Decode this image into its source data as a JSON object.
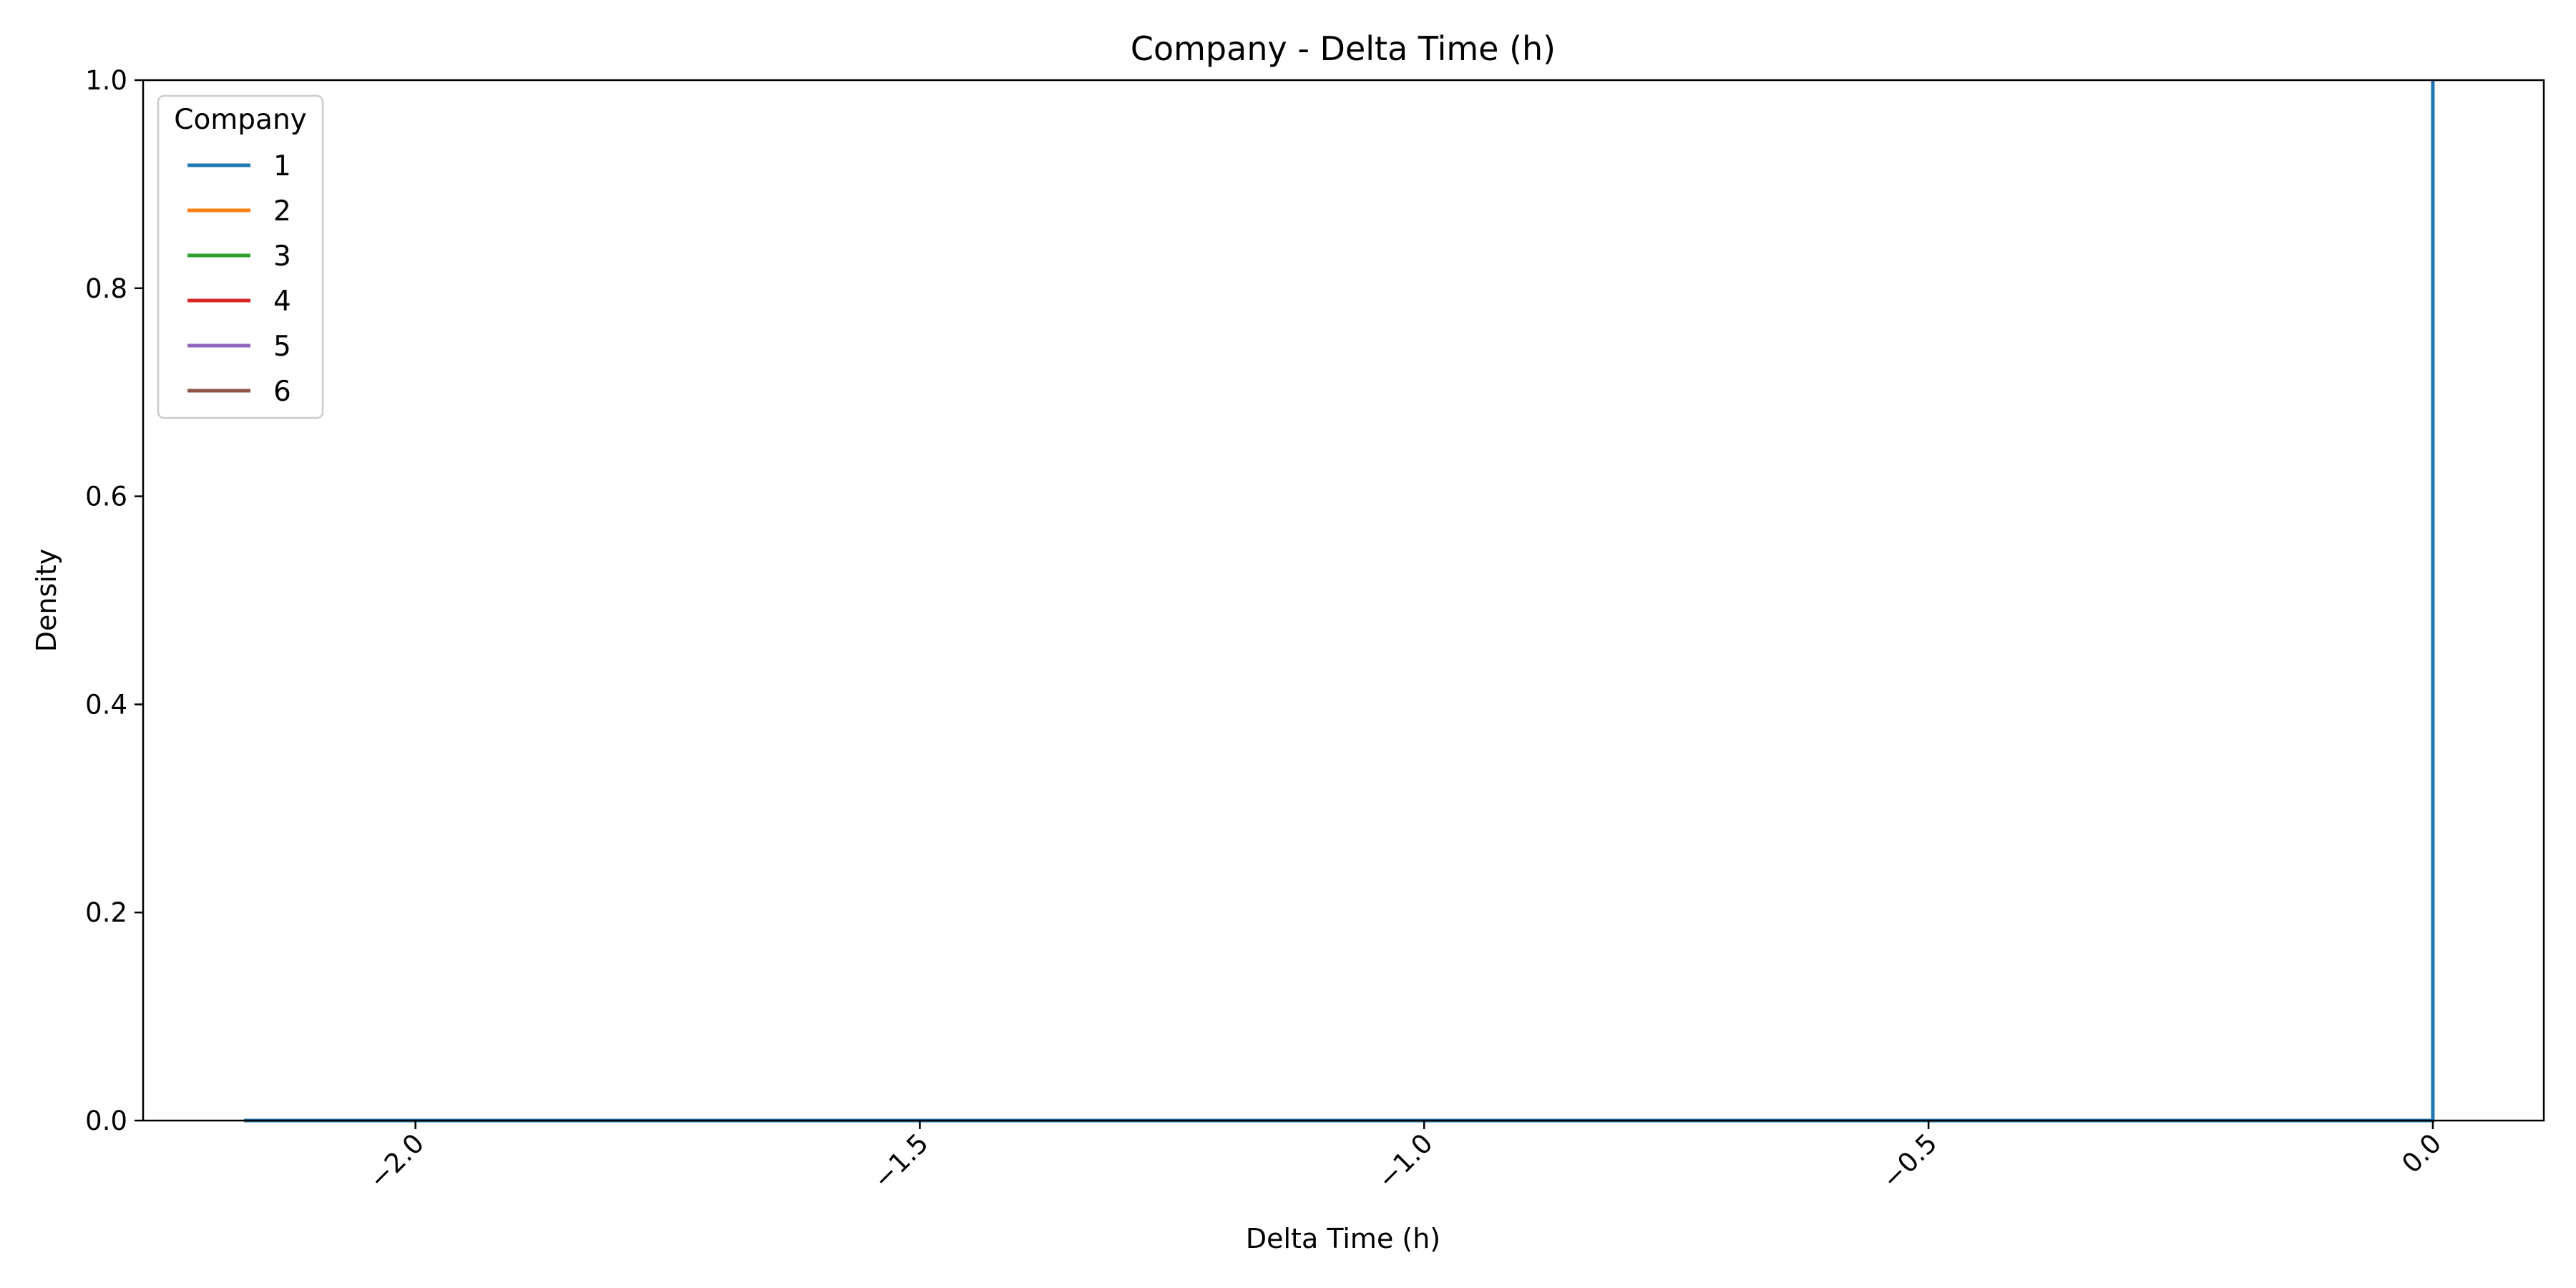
{
  "chart_data": {
    "type": "line",
    "title": "Company - Delta Time (h)",
    "xlabel": "Delta Time (h)",
    "ylabel": "Density",
    "xlim": [
      -2.27,
      0.11
    ],
    "ylim": [
      0,
      1.0
    ],
    "xticks": [
      -2.0,
      -1.5,
      -1.0,
      -0.5,
      0.0
    ],
    "xtick_labels": [
      "−2.0",
      "−1.5",
      "−1.0",
      "−0.5",
      "0.0"
    ],
    "xtick_rotation": 45,
    "yticks": [
      0.0,
      0.2,
      0.4,
      0.6,
      0.8,
      1.0
    ],
    "ytick_labels": [
      "0.0",
      "0.2",
      "0.4",
      "0.6",
      "0.8",
      "1.0"
    ],
    "grid": false,
    "legend": {
      "title": "Company",
      "placement": "top-left"
    },
    "series": [
      {
        "name": "1",
        "color": "#1f77b4",
        "x": [
          -2.17,
          0.0,
          0.0,
          0.0
        ],
        "y": [
          0.0,
          0.0,
          1.0,
          0.0
        ]
      },
      {
        "name": "2",
        "color": "#ff7f0e",
        "x": [
          -2.17,
          0.0
        ],
        "y": [
          0.0,
          0.0
        ]
      },
      {
        "name": "3",
        "color": "#2ca02c",
        "x": [
          -2.17,
          0.0
        ],
        "y": [
          0.0,
          0.0
        ]
      },
      {
        "name": "4",
        "color": "#d62728",
        "x": [
          -2.17,
          0.0
        ],
        "y": [
          0.0,
          0.0
        ]
      },
      {
        "name": "5",
        "color": "#9467bd",
        "x": [
          -2.17,
          0.0
        ],
        "y": [
          0.0,
          0.0
        ]
      },
      {
        "name": "6",
        "color": "#8c564b",
        "x": [
          -2.17,
          0.0
        ],
        "y": [
          0.0,
          0.0
        ]
      }
    ]
  }
}
